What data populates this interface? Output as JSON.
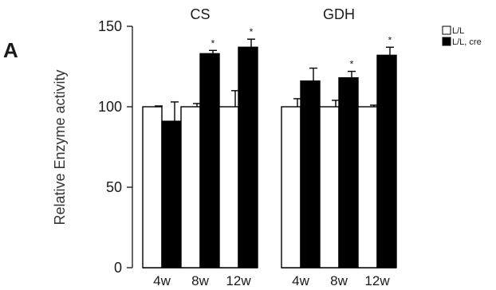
{
  "panel_label": "A",
  "chart_data": {
    "type": "bar",
    "ylabel": "Relative Enzyme activity",
    "xlabel": "",
    "ylim": [
      0,
      150
    ],
    "yticks": [
      0,
      50,
      100,
      150
    ],
    "grid": false,
    "legend_position": "top-right",
    "groups": [
      {
        "title": "CS",
        "categories": [
          "4w",
          "8w",
          "12w"
        ],
        "series": [
          {
            "name": "L/L",
            "values": [
              100,
              100,
              100
            ],
            "errors": [
              0.5,
              2,
              10
            ]
          },
          {
            "name": "L/L, cre",
            "values": [
              91,
              133,
              137
            ],
            "errors": [
              12,
              2,
              5
            ]
          }
        ],
        "significance": [
          "",
          "*",
          "*"
        ]
      },
      {
        "title": "GDH",
        "categories": [
          "4w",
          "8w",
          "12w"
        ],
        "series": [
          {
            "name": "L/L",
            "values": [
              100,
              100,
              100
            ],
            "errors": [
              5,
              4,
              1
            ]
          },
          {
            "name": "L/L, cre",
            "values": [
              116,
              118,
              132
            ],
            "errors": [
              8,
              4,
              5
            ]
          }
        ],
        "significance": [
          "",
          "*",
          "*"
        ]
      }
    ],
    "series_colors": {
      "L/L": "#ffffff",
      "L/L, cre": "#000000"
    },
    "bar_stroke": "#000000"
  }
}
